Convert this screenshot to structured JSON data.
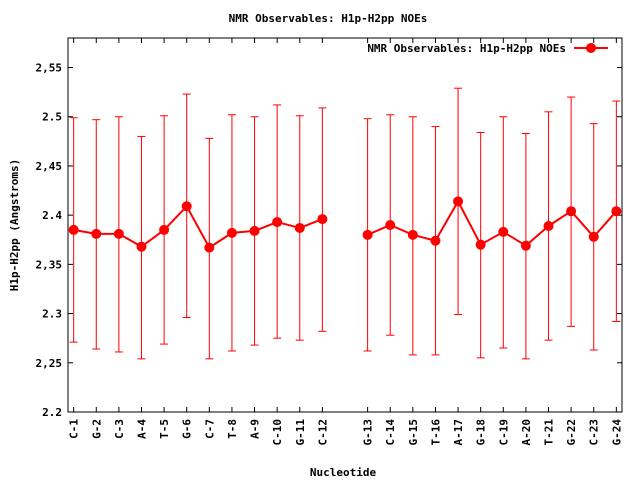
{
  "chart_data": {
    "type": "line",
    "title": "NMR Observables: H1p-H2pp NOEs",
    "xlabel": "Nucleotide",
    "ylabel": "H1p-H2pp (Angstroms)",
    "ylim": [
      2.2,
      2.58
    ],
    "yticks": [
      {
        "value": 2.2,
        "label": "2.2"
      },
      {
        "value": 2.25,
        "label": "2,25"
      },
      {
        "value": 2.3,
        "label": "2.3"
      },
      {
        "value": 2.35,
        "label": "2,35"
      },
      {
        "value": 2.4,
        "label": "2.4"
      },
      {
        "value": 2.45,
        "label": "2,45"
      },
      {
        "value": 2.5,
        "label": "2.5"
      },
      {
        "value": 2.55,
        "label": "2,55"
      }
    ],
    "grid": false,
    "legend_position": "top-right",
    "color": "#ff0000",
    "series": [
      {
        "name": "NMR Observables: H1p-H2pp NOEs",
        "points": [
          {
            "x": 1,
            "label": "C-1",
            "y": 2.385,
            "ymin": 2.271,
            "ymax": 2.499
          },
          {
            "x": 2,
            "label": "G-2",
            "y": 2.381,
            "ymin": 2.264,
            "ymax": 2.497
          },
          {
            "x": 3,
            "label": "C-3",
            "y": 2.381,
            "ymin": 2.261,
            "ymax": 2.5
          },
          {
            "x": 4,
            "label": "A-4",
            "y": 2.368,
            "ymin": 2.254,
            "ymax": 2.48
          },
          {
            "x": 5,
            "label": "T-5",
            "y": 2.385,
            "ymin": 2.269,
            "ymax": 2.501
          },
          {
            "x": 6,
            "label": "G-6",
            "y": 2.409,
            "ymin": 2.296,
            "ymax": 2.523
          },
          {
            "x": 7,
            "label": "C-7",
            "y": 2.367,
            "ymin": 2.254,
            "ymax": 2.478
          },
          {
            "x": 8,
            "label": "T-8",
            "y": 2.382,
            "ymin": 2.262,
            "ymax": 2.502
          },
          {
            "x": 9,
            "label": "A-9",
            "y": 2.384,
            "ymin": 2.268,
            "ymax": 2.5
          },
          {
            "x": 10,
            "label": "C-10",
            "y": 2.393,
            "ymin": 2.275,
            "ymax": 2.512
          },
          {
            "x": 11,
            "label": "G-11",
            "y": 2.387,
            "ymin": 2.273,
            "ymax": 2.501
          },
          {
            "x": 12,
            "label": "C-12",
            "y": 2.396,
            "ymin": 2.282,
            "ymax": 2.509
          },
          {
            "x": 14,
            "label": "G-13",
            "y": 2.38,
            "ymin": 2.262,
            "ymax": 2.498
          },
          {
            "x": 15,
            "label": "C-14",
            "y": 2.39,
            "ymin": 2.278,
            "ymax": 2.502
          },
          {
            "x": 16,
            "label": "G-15",
            "y": 2.38,
            "ymin": 2.258,
            "ymax": 2.5
          },
          {
            "x": 17,
            "label": "T-16",
            "y": 2.374,
            "ymin": 2.258,
            "ymax": 2.49
          },
          {
            "x": 18,
            "label": "A-17",
            "y": 2.414,
            "ymin": 2.299,
            "ymax": 2.529
          },
          {
            "x": 19,
            "label": "G-18",
            "y": 2.37,
            "ymin": 2.255,
            "ymax": 2.484
          },
          {
            "x": 20,
            "label": "C-19",
            "y": 2.383,
            "ymin": 2.265,
            "ymax": 2.5
          },
          {
            "x": 21,
            "label": "A-20",
            "y": 2.369,
            "ymin": 2.254,
            "ymax": 2.483
          },
          {
            "x": 22,
            "label": "T-21",
            "y": 2.389,
            "ymin": 2.273,
            "ymax": 2.505
          },
          {
            "x": 23,
            "label": "G-22",
            "y": 2.404,
            "ymin": 2.287,
            "ymax": 2.52
          },
          {
            "x": 24,
            "label": "C-23",
            "y": 2.378,
            "ymin": 2.263,
            "ymax": 2.493
          },
          {
            "x": 25,
            "label": "G-24",
            "y": 2.404,
            "ymin": 2.292,
            "ymax": 2.516
          }
        ]
      }
    ]
  }
}
